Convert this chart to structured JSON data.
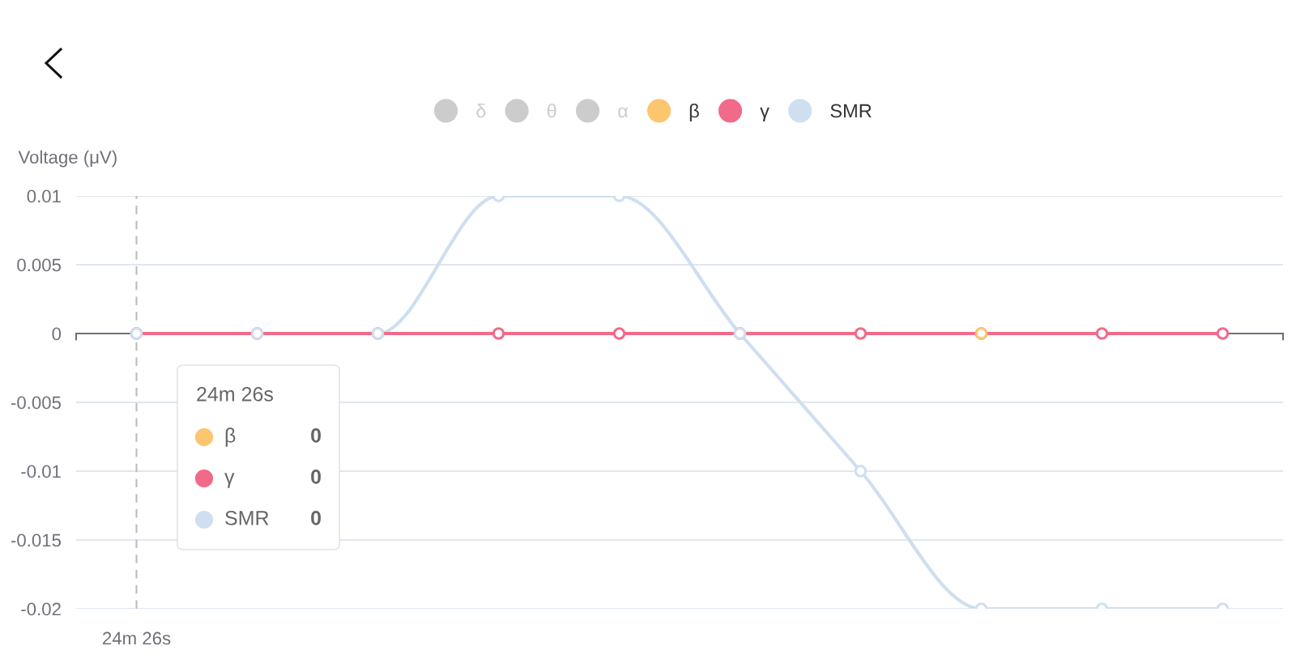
{
  "chart_data": {
    "type": "line",
    "ylabel": "Voltage (μV)",
    "categories": [
      "24m 26s",
      null,
      null,
      null,
      null,
      null,
      null,
      null,
      null,
      null
    ],
    "series": [
      {
        "name": "δ",
        "color": "#cccccc",
        "values": [
          null,
          null,
          null,
          null,
          null,
          null,
          null,
          null,
          null,
          null
        ]
      },
      {
        "name": "θ",
        "color": "#cccccc",
        "values": [
          null,
          null,
          null,
          null,
          null,
          null,
          null,
          null,
          null,
          null
        ]
      },
      {
        "name": "α",
        "color": "#cccccc",
        "values": [
          null,
          null,
          null,
          null,
          null,
          null,
          null,
          null,
          null,
          null
        ]
      },
      {
        "name": "β",
        "color": "#fcc66f",
        "values": [
          null,
          null,
          null,
          null,
          null,
          null,
          null,
          0,
          null,
          null
        ]
      },
      {
        "name": "γ",
        "color": "#f26a8a",
        "values": [
          0,
          0,
          0,
          0,
          0,
          0,
          0,
          0,
          0,
          0
        ]
      },
      {
        "name": "SMR",
        "color": "#cfdff0",
        "values": [
          0,
          0,
          0,
          0.01,
          0.01,
          0,
          -0.01,
          -0.02,
          -0.02,
          -0.02
        ]
      }
    ],
    "ylim": [
      -0.02,
      0.01
    ],
    "yticks": [
      0.01,
      0.005,
      0,
      -0.005,
      -0.01,
      -0.015,
      -0.02
    ],
    "grid": "y",
    "legend": "top",
    "marker": "circle",
    "line_style": "solid",
    "ref_lines": [
      {
        "axis": "x",
        "value": "24m 26s",
        "color": "#bbbbbb",
        "line_style": "dashed"
      }
    ],
    "annotations": [
      "24m 26s",
      "β",
      "0",
      "γ",
      "0",
      "SMR",
      "0"
    ]
  }
}
